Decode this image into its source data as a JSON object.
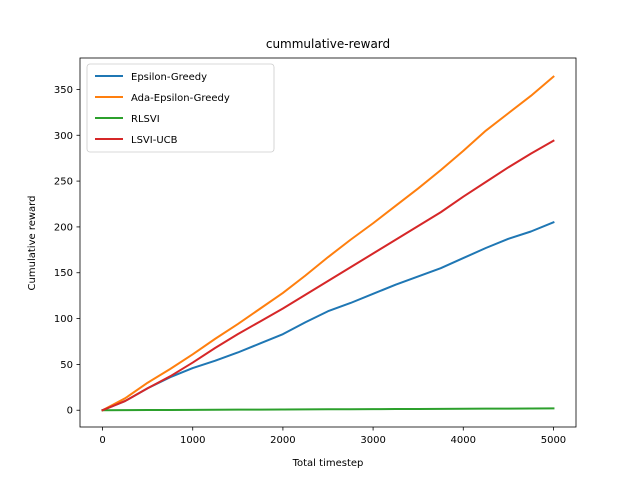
{
  "chart_data": {
    "type": "line",
    "title": "cummulative-reward",
    "xlabel": "Total timestep",
    "ylabel": "Cumulative reward",
    "xlim": [
      -250,
      5250
    ],
    "ylim": [
      -18.3,
      384.3
    ],
    "xticks": [
      0,
      1000,
      2000,
      3000,
      4000,
      5000
    ],
    "yticks": [
      0,
      50,
      100,
      150,
      200,
      250,
      300,
      350
    ],
    "grid": false,
    "legend_position": "top-left",
    "x": [
      0,
      250,
      500,
      750,
      1000,
      1250,
      1500,
      1750,
      2000,
      2250,
      2500,
      2750,
      3000,
      3250,
      3500,
      3750,
      4000,
      4250,
      4500,
      4750,
      5000
    ],
    "series": [
      {
        "name": "Epsilon-Greedy",
        "color": "#1f77b4",
        "values": [
          0,
          10,
          24,
          36,
          46,
          54,
          63,
          73,
          83,
          96,
          108,
          117,
          127,
          137,
          146,
          155,
          166,
          177,
          187,
          195,
          205
        ]
      },
      {
        "name": "Ada-Epsilon-Greedy",
        "color": "#ff7f0e",
        "values": [
          0,
          13,
          30,
          45,
          61,
          78,
          94,
          111,
          128,
          147,
          167,
          186,
          204,
          223,
          242,
          262,
          283,
          305,
          324,
          343,
          364
        ]
      },
      {
        "name": "RLSVI",
        "color": "#2ca02c",
        "values": [
          0,
          0.1,
          0.2,
          0.3,
          0.4,
          0.5,
          0.6,
          0.7,
          0.8,
          0.9,
          1.0,
          1.1,
          1.2,
          1.3,
          1.4,
          1.5,
          1.6,
          1.7,
          1.8,
          1.9,
          2.0
        ]
      },
      {
        "name": "LSVI-UCB",
        "color": "#d62728",
        "values": [
          0,
          10,
          24,
          37,
          52,
          68,
          83,
          97,
          111,
          126,
          141,
          156,
          171,
          186,
          201,
          216,
          233,
          249,
          265,
          280,
          294
        ]
      }
    ]
  }
}
